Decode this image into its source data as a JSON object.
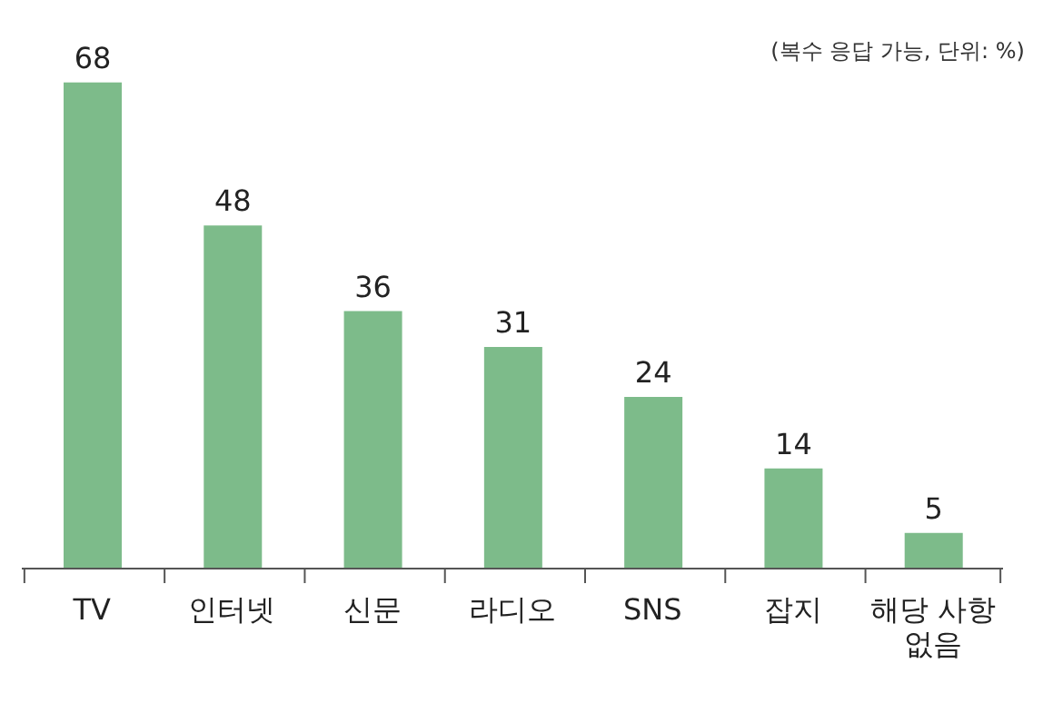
{
  "chart_data": {
    "type": "bar",
    "categories": [
      "TV",
      "인터넷",
      "신문",
      "라디오",
      "SNS",
      "잡지",
      "해당 사항 없음"
    ],
    "values": [
      68,
      48,
      36,
      31,
      24,
      14,
      5
    ],
    "color": "#7dbb8a",
    "data_labels": true,
    "annotations": [
      "(복수 응답 가능, 단위: %)"
    ]
  }
}
